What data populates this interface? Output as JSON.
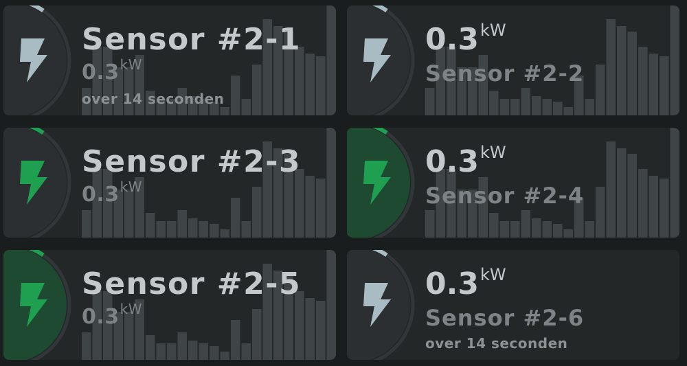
{
  "colors": {
    "background": "#1a1d1e",
    "card": "#242728",
    "bar": "#3f4547",
    "icon_idle": "#a9bcc4",
    "icon_active": "#1f9f50",
    "active_fill": "#1e4a32",
    "arc_idle": "#a9bcc4",
    "arc_active": "#1f9f50",
    "arc_track": "#323638"
  },
  "history": [
    40,
    100,
    100,
    70,
    70,
    88,
    36,
    24,
    24,
    40,
    28,
    24,
    20,
    12,
    58,
    24,
    74,
    140,
    130,
    122,
    100,
    90,
    86,
    160,
    84
  ],
  "cards": [
    {
      "id": "sensor-2-1",
      "layout": "name-first",
      "name": "Sensor #2-1",
      "value": "0.3",
      "unit": "kW",
      "meta": "over 14 seconden",
      "icon": "lightning-icon",
      "active": false,
      "level": 0.06
    },
    {
      "id": "sensor-2-2",
      "layout": "value-first",
      "name": "Sensor #2-2",
      "value": "0.3",
      "unit": "kW",
      "meta": "",
      "icon": "lightning-icon",
      "active": false,
      "level": 0.06
    },
    {
      "id": "sensor-2-3",
      "layout": "name-first",
      "name": "Sensor #2-3",
      "value": "0.3",
      "unit": "kW",
      "meta": "",
      "icon": "lightning-icon",
      "active": true,
      "level": 0.06
    },
    {
      "id": "sensor-2-4",
      "layout": "value-first",
      "name": "Sensor #2-4",
      "value": "0.3",
      "unit": "kW",
      "meta": "",
      "icon": "lightning-icon",
      "active": true,
      "level": 0.06
    },
    {
      "id": "sensor-2-5",
      "layout": "name-first",
      "name": "Sensor #2-5",
      "value": "0.3",
      "unit": "kW",
      "meta": "",
      "icon": "lightning-icon",
      "active": true,
      "level": 0.06
    },
    {
      "id": "sensor-2-6",
      "layout": "value-first",
      "name": "Sensor #2-6",
      "value": "0.3",
      "unit": "kW",
      "meta": "over 14 seconden",
      "icon": "lightning-icon",
      "active": false,
      "level": 0.06
    }
  ]
}
